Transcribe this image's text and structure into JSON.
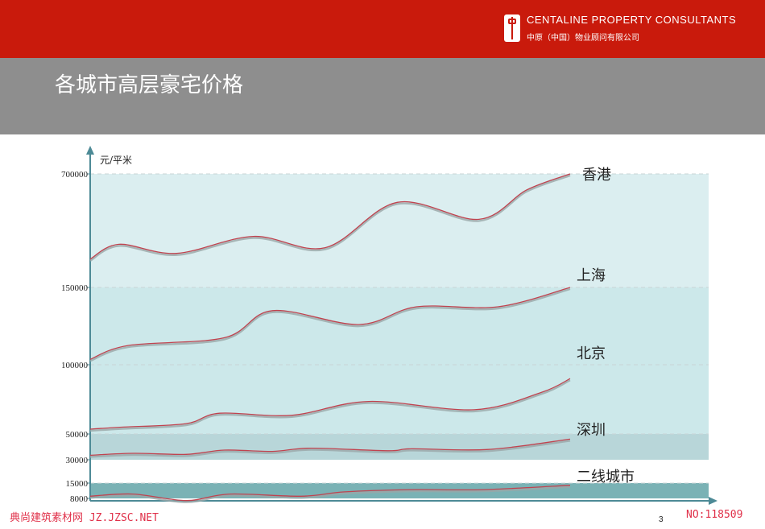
{
  "header": {
    "brand_en": "CENTALINE PROPERTY CONSULTANTS",
    "brand_cn": "中原（中国）物业顾问有限公司",
    "logo_icon": "centaline-logo-icon",
    "accent_color": "#c91a0c"
  },
  "page_title": "各城市高层豪宅价格",
  "page_number": "3",
  "footer": {
    "watermark_left": "典尚建筑素材网 JZ.JZSC.NET",
    "watermark_right": "NO:118509"
  },
  "chart_data": {
    "type": "line",
    "ylabel": "元/平米",
    "yticks": [
      "700000",
      "150000",
      "100000",
      "50000",
      "30000",
      "15000",
      "8000"
    ],
    "axis_color": "#4d8a96",
    "bands": [
      {
        "from": "150000",
        "to": "700000",
        "color": "#dbeef0"
      },
      {
        "from": "50000",
        "to": "150000",
        "color": "#cce8ea"
      },
      {
        "from": "30000",
        "to": "50000",
        "color": "#b8d6d9"
      },
      {
        "from": "8000",
        "to": "15000",
        "color": "#7ab2b5"
      }
    ],
    "series": [
      {
        "name": "香港",
        "points": [
          [
            0,
            25
          ],
          [
            0.06,
            38
          ],
          [
            0.18,
            30
          ],
          [
            0.34,
            45
          ],
          [
            0.49,
            35
          ],
          [
            0.64,
            75
          ],
          [
            0.81,
            60
          ],
          [
            0.91,
            86
          ],
          [
            1,
            100
          ]
        ]
      },
      {
        "name": "上海",
        "points": [
          [
            0,
            7
          ],
          [
            0.08,
            25
          ],
          [
            0.28,
            35
          ],
          [
            0.38,
            70
          ],
          [
            0.56,
            52
          ],
          [
            0.68,
            75
          ],
          [
            0.85,
            75
          ],
          [
            1,
            100
          ]
        ]
      },
      {
        "name": "北京",
        "points": [
          [
            0,
            7
          ],
          [
            0.07,
            10
          ],
          [
            0.2,
            15
          ],
          [
            0.27,
            30
          ],
          [
            0.42,
            27
          ],
          [
            0.58,
            47
          ],
          [
            0.8,
            35
          ],
          [
            0.94,
            60
          ],
          [
            1,
            80
          ]
        ]
      },
      {
        "name": "深圳",
        "points": [
          [
            0,
            35
          ],
          [
            0.09,
            50
          ],
          [
            0.2,
            42
          ],
          [
            0.28,
            75
          ],
          [
            0.38,
            65
          ],
          [
            0.46,
            90
          ],
          [
            0.62,
            70
          ],
          [
            0.67,
            85
          ],
          [
            0.83,
            80
          ],
          [
            1,
            160
          ]
        ]
      },
      {
        "name": "二线城市",
        "points": [
          [
            0,
            9
          ],
          [
            0.09,
            10
          ],
          [
            0.2,
            7
          ],
          [
            0.29,
            10
          ],
          [
            0.44,
            9
          ],
          [
            0.53,
            11
          ],
          [
            0.67,
            12
          ],
          [
            0.82,
            12
          ],
          [
            1,
            14
          ]
        ]
      }
    ]
  }
}
